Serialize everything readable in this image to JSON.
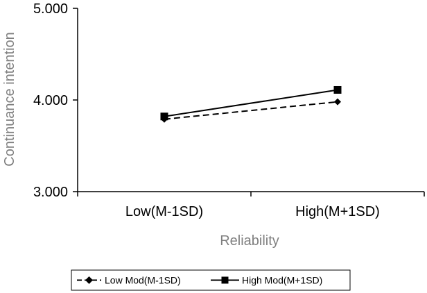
{
  "chart_data": {
    "type": "line",
    "title": "",
    "xlabel": "Reliability",
    "ylabel": "Continuance intention",
    "categories": [
      "Low(M-1SD)",
      "High(M+1SD)"
    ],
    "y_ticks": [
      "3.000",
      "4.000",
      "5.000"
    ],
    "ylim": [
      3.0,
      5.0
    ],
    "grid": false,
    "legend_position": "bottom",
    "series": [
      {
        "name": "Low Mod(M-1SD)",
        "values": [
          3.79,
          3.98
        ],
        "line_style": "dashed",
        "marker": "diamond",
        "color": "#000000"
      },
      {
        "name": "High Mod(M+1SD)",
        "values": [
          3.82,
          4.11
        ],
        "line_style": "solid",
        "marker": "square",
        "color": "#000000"
      }
    ]
  }
}
